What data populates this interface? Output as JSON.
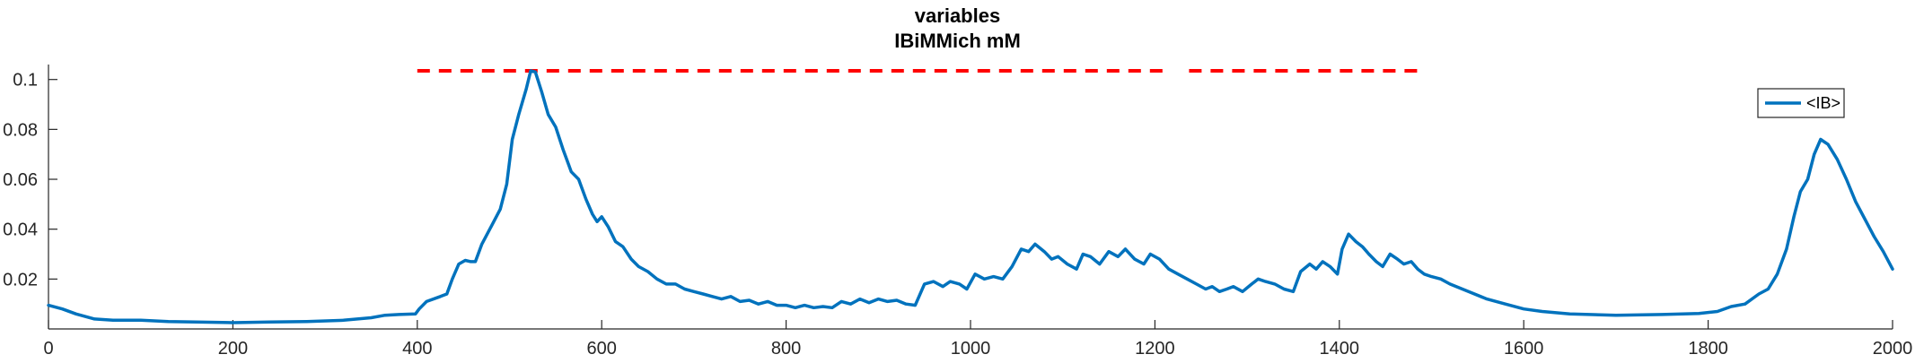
{
  "chart_data": {
    "type": "line",
    "title": [
      "variables",
      "IBiMMich mM"
    ],
    "xlabel": "",
    "ylabel": "",
    "xlim": [
      0,
      2000
    ],
    "ylim": [
      0.0,
      0.106
    ],
    "xticks": [
      0,
      200,
      400,
      600,
      800,
      1000,
      1200,
      1400,
      1600,
      1800,
      2000
    ],
    "xtick_labels": [
      "0",
      "200",
      "400",
      "600",
      "800",
      "1000",
      "1200",
      "1400",
      "1600",
      "1800",
      "2000"
    ],
    "yticks": [
      0.02,
      0.04,
      0.06,
      0.08,
      0.1
    ],
    "ytick_labels": [
      "0.02",
      "0.04",
      "0.06",
      "0.08",
      "0.1"
    ],
    "grid": false,
    "legend_placement": "top-right",
    "threshold": {
      "y": 0.1035,
      "x_start": 400,
      "x_end": 1490,
      "color": "#ff0000",
      "style": "dashed"
    },
    "series": [
      {
        "name": "<IB>",
        "color": "#0072bd",
        "points": [
          [
            0,
            0.0095
          ],
          [
            15,
            0.008
          ],
          [
            30,
            0.006
          ],
          [
            50,
            0.004
          ],
          [
            70,
            0.0035
          ],
          [
            100,
            0.0035
          ],
          [
            130,
            0.003
          ],
          [
            160,
            0.0028
          ],
          [
            200,
            0.0025
          ],
          [
            240,
            0.0028
          ],
          [
            280,
            0.003
          ],
          [
            320,
            0.0035
          ],
          [
            350,
            0.0045
          ],
          [
            365,
            0.0055
          ],
          [
            380,
            0.0058
          ],
          [
            398,
            0.006
          ],
          [
            402,
            0.008
          ],
          [
            410,
            0.011
          ],
          [
            425,
            0.013
          ],
          [
            432,
            0.014
          ],
          [
            438,
            0.02
          ],
          [
            445,
            0.026
          ],
          [
            452,
            0.0275
          ],
          [
            458,
            0.027
          ],
          [
            463,
            0.027
          ],
          [
            470,
            0.034
          ],
          [
            480,
            0.041
          ],
          [
            490,
            0.048
          ],
          [
            497,
            0.058
          ],
          [
            503,
            0.076
          ],
          [
            510,
            0.086
          ],
          [
            518,
            0.096
          ],
          [
            523,
            0.1035
          ],
          [
            528,
            0.103
          ],
          [
            535,
            0.095
          ],
          [
            542,
            0.086
          ],
          [
            550,
            0.081
          ],
          [
            558,
            0.072
          ],
          [
            567,
            0.063
          ],
          [
            575,
            0.06
          ],
          [
            583,
            0.052
          ],
          [
            590,
            0.046
          ],
          [
            595,
            0.043
          ],
          [
            600,
            0.045
          ],
          [
            607,
            0.041
          ],
          [
            615,
            0.035
          ],
          [
            623,
            0.033
          ],
          [
            632,
            0.028
          ],
          [
            640,
            0.025
          ],
          [
            650,
            0.023
          ],
          [
            660,
            0.02
          ],
          [
            670,
            0.018
          ],
          [
            680,
            0.018
          ],
          [
            690,
            0.016
          ],
          [
            700,
            0.015
          ],
          [
            710,
            0.014
          ],
          [
            720,
            0.013
          ],
          [
            730,
            0.012
          ],
          [
            740,
            0.013
          ],
          [
            750,
            0.011
          ],
          [
            760,
            0.0115
          ],
          [
            770,
            0.01
          ],
          [
            780,
            0.011
          ],
          [
            790,
            0.0095
          ],
          [
            800,
            0.0095
          ],
          [
            810,
            0.0085
          ],
          [
            820,
            0.0095
          ],
          [
            830,
            0.0085
          ],
          [
            840,
            0.009
          ],
          [
            850,
            0.0085
          ],
          [
            860,
            0.011
          ],
          [
            870,
            0.01
          ],
          [
            880,
            0.012
          ],
          [
            890,
            0.0105
          ],
          [
            900,
            0.012
          ],
          [
            910,
            0.011
          ],
          [
            920,
            0.0115
          ],
          [
            930,
            0.01
          ],
          [
            940,
            0.0095
          ],
          [
            950,
            0.018
          ],
          [
            960,
            0.019
          ],
          [
            970,
            0.017
          ],
          [
            978,
            0.019
          ],
          [
            988,
            0.018
          ],
          [
            996,
            0.016
          ],
          [
            1005,
            0.022
          ],
          [
            1015,
            0.02
          ],
          [
            1025,
            0.021
          ],
          [
            1035,
            0.02
          ],
          [
            1045,
            0.025
          ],
          [
            1055,
            0.032
          ],
          [
            1063,
            0.031
          ],
          [
            1070,
            0.034
          ],
          [
            1080,
            0.031
          ],
          [
            1088,
            0.028
          ],
          [
            1095,
            0.029
          ],
          [
            1105,
            0.026
          ],
          [
            1115,
            0.024
          ],
          [
            1122,
            0.03
          ],
          [
            1130,
            0.029
          ],
          [
            1140,
            0.026
          ],
          [
            1150,
            0.031
          ],
          [
            1160,
            0.029
          ],
          [
            1168,
            0.032
          ],
          [
            1178,
            0.028
          ],
          [
            1188,
            0.026
          ],
          [
            1195,
            0.03
          ],
          [
            1205,
            0.028
          ],
          [
            1215,
            0.024
          ],
          [
            1225,
            0.022
          ],
          [
            1235,
            0.02
          ],
          [
            1245,
            0.018
          ],
          [
            1255,
            0.016
          ],
          [
            1262,
            0.017
          ],
          [
            1270,
            0.015
          ],
          [
            1278,
            0.016
          ],
          [
            1285,
            0.017
          ],
          [
            1295,
            0.015
          ],
          [
            1305,
            0.018
          ],
          [
            1312,
            0.02
          ],
          [
            1320,
            0.019
          ],
          [
            1330,
            0.018
          ],
          [
            1340,
            0.016
          ],
          [
            1350,
            0.015
          ],
          [
            1358,
            0.023
          ],
          [
            1368,
            0.026
          ],
          [
            1375,
            0.024
          ],
          [
            1382,
            0.027
          ],
          [
            1390,
            0.025
          ],
          [
            1398,
            0.022
          ],
          [
            1403,
            0.032
          ],
          [
            1410,
            0.038
          ],
          [
            1418,
            0.035
          ],
          [
            1425,
            0.033
          ],
          [
            1432,
            0.03
          ],
          [
            1440,
            0.027
          ],
          [
            1447,
            0.025
          ],
          [
            1455,
            0.03
          ],
          [
            1463,
            0.028
          ],
          [
            1470,
            0.026
          ],
          [
            1478,
            0.027
          ],
          [
            1485,
            0.024
          ],
          [
            1492,
            0.022
          ],
          [
            1500,
            0.021
          ],
          [
            1510,
            0.02
          ],
          [
            1520,
            0.018
          ],
          [
            1540,
            0.015
          ],
          [
            1560,
            0.012
          ],
          [
            1580,
            0.01
          ],
          [
            1600,
            0.008
          ],
          [
            1620,
            0.007
          ],
          [
            1650,
            0.006
          ],
          [
            1700,
            0.0055
          ],
          [
            1750,
            0.0058
          ],
          [
            1790,
            0.0062
          ],
          [
            1810,
            0.007
          ],
          [
            1825,
            0.009
          ],
          [
            1840,
            0.01
          ],
          [
            1855,
            0.014
          ],
          [
            1865,
            0.016
          ],
          [
            1875,
            0.022
          ],
          [
            1885,
            0.032
          ],
          [
            1893,
            0.045
          ],
          [
            1900,
            0.055
          ],
          [
            1908,
            0.06
          ],
          [
            1915,
            0.07
          ],
          [
            1922,
            0.076
          ],
          [
            1930,
            0.074
          ],
          [
            1940,
            0.068
          ],
          [
            1950,
            0.06
          ],
          [
            1960,
            0.051
          ],
          [
            1970,
            0.044
          ],
          [
            1980,
            0.037
          ],
          [
            1990,
            0.031
          ],
          [
            2000,
            0.024
          ]
        ]
      }
    ]
  }
}
